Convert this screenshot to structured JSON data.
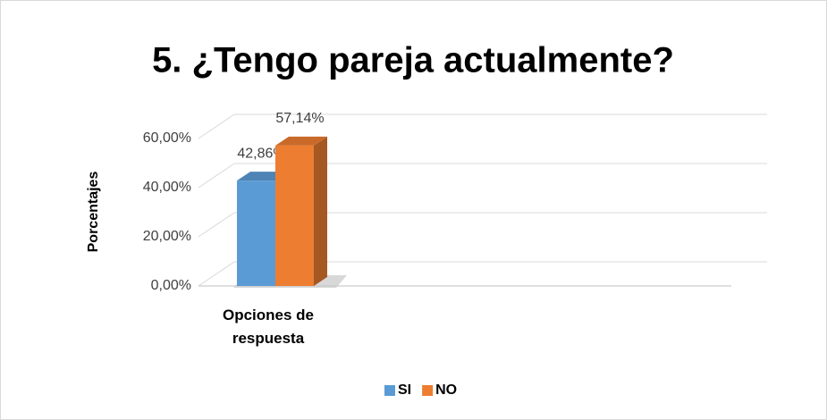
{
  "chart_data": {
    "type": "bar3d",
    "title": "5. ¿Tengo pareja actualmente?",
    "y_label": "Porcentajes",
    "categories": [
      "Opciones de respuesta"
    ],
    "series": [
      {
        "name": "SI",
        "color": "#5b9bd5",
        "values": [
          42.86
        ],
        "value_labels": [
          "42,86%"
        ]
      },
      {
        "name": "NO",
        "color": "#ed7d31",
        "values": [
          57.14
        ],
        "value_labels": [
          "57,14%"
        ]
      }
    ],
    "ylim": [
      0,
      60
    ],
    "yticks": [
      {
        "value": 0,
        "label": "0,00%"
      },
      {
        "value": 20,
        "label": "20,00%"
      },
      {
        "value": 40,
        "label": "40,00%"
      },
      {
        "value": 60,
        "label": "60,00%"
      }
    ],
    "grid": true,
    "legend": "bottom"
  }
}
